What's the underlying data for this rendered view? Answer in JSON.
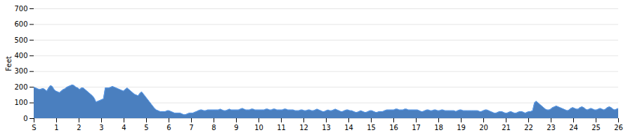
{
  "chart_data": {
    "type": "area",
    "ylabel": "Feet",
    "color": "#4a7fbf",
    "xlim": [
      0,
      26
    ],
    "xticks": [
      {
        "value": 0,
        "label": "S"
      },
      1,
      2,
      3,
      4,
      5,
      6,
      7,
      8,
      9,
      10,
      11,
      12,
      13,
      14,
      15,
      16,
      17,
      18,
      19,
      20,
      21,
      22,
      23,
      24,
      25,
      26
    ],
    "ylim": [
      0,
      700
    ],
    "yticks": [
      0,
      100,
      200,
      300,
      400,
      500,
      600,
      700
    ],
    "grid": true,
    "x": [
      0,
      0.08125,
      0.1625,
      0.24375,
      0.325,
      0.40625,
      0.4875,
      0.56875,
      0.65,
      0.73125,
      0.8125,
      0.89375,
      0.975,
      1.05625,
      1.1375,
      1.21875,
      1.3,
      1.38125,
      1.4625,
      1.54375,
      1.625,
      1.70625,
      1.7875,
      1.86875,
      1.95,
      2.03125,
      2.1125,
      2.19375,
      2.275,
      2.35625,
      2.4375,
      2.51875,
      2.6,
      2.68125,
      2.7625,
      2.84375,
      2.925,
      3.00625,
      3.0875,
      3.16875,
      3.25,
      3.33125,
      3.4125,
      3.49375,
      3.575,
      3.65625,
      3.7375,
      3.81875,
      3.9,
      3.98125,
      4.0625,
      4.14375,
      4.225,
      4.30625,
      4.3875,
      4.46875,
      4.55,
      4.63125,
      4.7125,
      4.79375,
      4.875,
      4.95625,
      5.0375,
      5.11875,
      5.2,
      5.28125,
      5.3625,
      5.44375,
      5.525,
      5.60625,
      5.6875,
      5.76875,
      5.85,
      5.93125,
      6.0125,
      6.09375,
      6.175,
      6.25625,
      6.3375,
      6.41875,
      6.5,
      6.58125,
      6.6625,
      6.74375,
      6.825,
      6.90625,
      6.9875,
      7.06875,
      7.15,
      7.23125,
      7.3125,
      7.39375,
      7.475,
      7.55625,
      7.6375,
      7.71875,
      7.8,
      7.88125,
      7.9625,
      8.04375,
      8.125,
      8.20625,
      8.2875,
      8.36875,
      8.45,
      8.53125,
      8.6125,
      8.69375,
      8.775,
      8.85625,
      8.9375,
      9.01875,
      9.1,
      9.18125,
      9.2625,
      9.34375,
      9.425,
      9.50625,
      9.5875,
      9.66875,
      9.75,
      9.83125,
      9.9125,
      9.99375,
      10.075,
      10.15625,
      10.2375,
      10.31875,
      10.4,
      10.48125,
      10.5625,
      10.64375,
      10.725,
      10.80625,
      10.8875,
      10.96875,
      11.05,
      11.13125,
      11.2125,
      11.29375,
      11.375,
      11.45625,
      11.5375,
      11.61875,
      11.7,
      11.78125,
      11.8625,
      11.94375,
      12.025,
      12.10625,
      12.1875,
      12.26875,
      12.35,
      12.43125,
      12.5125,
      12.59375,
      12.675,
      12.75625,
      12.8375,
      12.91875,
      13,
      13.08125,
      13.1625,
      13.24375,
      13.325,
      13.40625,
      13.4875,
      13.56875,
      13.65,
      13.73125,
      13.8125,
      13.89375,
      13.975,
      14.05625,
      14.1375,
      14.21875,
      14.3,
      14.38125,
      14.4625,
      14.54375,
      14.625,
      14.70625,
      14.7875,
      14.86875,
      14.95,
      15.03125,
      15.1125,
      15.19375,
      15.275,
      15.35625,
      15.4375,
      15.51875,
      15.6,
      15.68125,
      15.7625,
      15.84375,
      15.925,
      16.00625,
      16.0875,
      16.16875,
      16.25,
      16.33125,
      16.4125,
      16.49375,
      16.575,
      16.65625,
      16.7375,
      16.81875,
      16.9,
      16.98125,
      17.0625,
      17.14375,
      17.225,
      17.30625,
      17.3875,
      17.46875,
      17.55,
      17.63125,
      17.7125,
      17.79375,
      17.875,
      17.95625,
      18.0375,
      18.11875,
      18.2,
      18.28125,
      18.3625,
      18.44375,
      18.525,
      18.60625,
      18.6875,
      18.76875,
      18.85,
      18.93125,
      19.0125,
      19.09375,
      19.175,
      19.25625,
      19.3375,
      19.41875,
      19.5,
      19.58125,
      19.6625,
      19.74375,
      19.825,
      19.90625,
      19.9875,
      20.06875,
      20.15,
      20.23125,
      20.3125,
      20.39375,
      20.475,
      20.55625,
      20.6375,
      20.71875,
      20.8,
      20.88125,
      20.9625,
      21.04375,
      21.125,
      21.20625,
      21.2875,
      21.36875,
      21.45,
      21.53125,
      21.6125,
      21.69375,
      21.775,
      21.85625,
      21.9375,
      22.01875,
      22.1,
      22.18125,
      22.2625,
      22.34375,
      22.425,
      22.50625,
      22.5875,
      22.66875,
      22.75,
      22.83125,
      22.9125,
      22.99375,
      23.075,
      23.15625,
      23.2375,
      23.31875,
      23.4,
      23.48125,
      23.5625,
      23.64375,
      23.725,
      23.80625,
      23.8875,
      23.96875,
      24.05,
      24.13125,
      24.2125,
      24.29375,
      24.375,
      24.45625,
      24.5375,
      24.61875,
      24.7,
      24.78125,
      24.8625,
      24.94375,
      25.025,
      25.10625,
      25.1875,
      25.26875,
      25.35,
      25.43125,
      25.5125,
      25.59375,
      25.675,
      25.75625,
      25.8375,
      25.91875,
      26
    ],
    "values": [
      200,
      195,
      190,
      185,
      188,
      192,
      185,
      175,
      195,
      210,
      205,
      185,
      175,
      170,
      165,
      175,
      185,
      190,
      200,
      205,
      210,
      215,
      210,
      200,
      195,
      185,
      195,
      195,
      185,
      175,
      165,
      155,
      145,
      130,
      105,
      110,
      115,
      120,
      125,
      195,
      195,
      195,
      200,
      205,
      200,
      195,
      190,
      185,
      180,
      175,
      185,
      195,
      185,
      175,
      165,
      155,
      150,
      145,
      160,
      170,
      155,
      140,
      125,
      110,
      95,
      80,
      65,
      55,
      50,
      45,
      45,
      45,
      45,
      50,
      50,
      45,
      40,
      35,
      35,
      35,
      35,
      30,
      25,
      25,
      30,
      35,
      35,
      35,
      40,
      45,
      50,
      55,
      55,
      50,
      50,
      55,
      55,
      55,
      55,
      55,
      55,
      55,
      60,
      55,
      50,
      50,
      55,
      60,
      55,
      55,
      55,
      55,
      55,
      60,
      65,
      60,
      55,
      55,
      55,
      60,
      60,
      55,
      55,
      55,
      55,
      55,
      55,
      60,
      60,
      55,
      55,
      60,
      60,
      55,
      55,
      55,
      55,
      60,
      60,
      55,
      55,
      55,
      55,
      50,
      50,
      50,
      55,
      55,
      50,
      50,
      55,
      55,
      50,
      50,
      55,
      60,
      55,
      50,
      45,
      45,
      50,
      55,
      50,
      50,
      55,
      60,
      55,
      50,
      45,
      45,
      50,
      55,
      55,
      50,
      50,
      45,
      40,
      40,
      45,
      50,
      45,
      40,
      40,
      45,
      50,
      50,
      45,
      40,
      40,
      45,
      45,
      45,
      50,
      55,
      55,
      55,
      55,
      55,
      60,
      60,
      55,
      55,
      55,
      60,
      60,
      55,
      55,
      55,
      55,
      55,
      55,
      50,
      45,
      45,
      50,
      55,
      55,
      50,
      50,
      55,
      55,
      50,
      50,
      55,
      55,
      50,
      50,
      50,
      50,
      50,
      50,
      45,
      50,
      55,
      55,
      50,
      50,
      50,
      50,
      50,
      50,
      50,
      50,
      50,
      45,
      45,
      50,
      55,
      55,
      50,
      45,
      40,
      35,
      35,
      40,
      45,
      45,
      40,
      35,
      35,
      40,
      45,
      40,
      35,
      35,
      40,
      45,
      45,
      40,
      35,
      40,
      45,
      45,
      50,
      100,
      110,
      100,
      90,
      80,
      70,
      60,
      55,
      55,
      60,
      70,
      75,
      80,
      75,
      70,
      65,
      60,
      55,
      50,
      55,
      65,
      70,
      65,
      60,
      60,
      70,
      75,
      70,
      60,
      55,
      60,
      65,
      60,
      55,
      55,
      60,
      65,
      60,
      55,
      60,
      70,
      75,
      70,
      60,
      55,
      60,
      65
    ]
  }
}
